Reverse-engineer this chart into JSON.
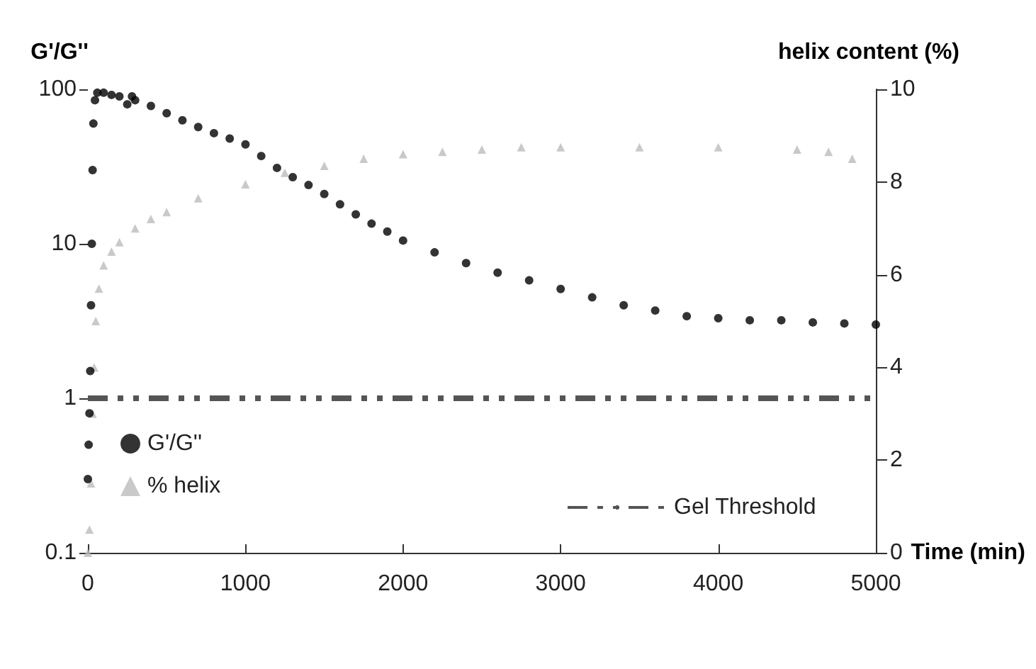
{
  "chart_data": {
    "type": "scatter",
    "xlabel": "Time (min)",
    "ylabel": "G'/G''",
    "y2label": "helix content (%)",
    "xlim": [
      0,
      5000
    ],
    "xticks": [
      0,
      1000,
      2000,
      3000,
      4000,
      5000
    ],
    "ylim": [
      0.1,
      100
    ],
    "yticks": [
      0.1,
      1,
      10,
      100
    ],
    "log": "y",
    "y2lim": [
      0,
      10
    ],
    "y2ticks": [
      0,
      2,
      4,
      6,
      8,
      10
    ],
    "grid": false,
    "legend": "bottom",
    "series": [
      {
        "name": "G'/G''",
        "color": "#000000",
        "marker": "circle",
        "x": [
          0,
          5,
          10,
          15,
          20,
          25,
          30,
          35,
          45,
          60,
          100,
          150,
          200,
          250,
          280,
          300,
          400,
          500,
          600,
          700,
          800,
          900,
          1000,
          1100,
          1200,
          1300,
          1400,
          1500,
          1600,
          1700,
          1800,
          1900,
          2000,
          2200,
          2400,
          2600,
          2800,
          3000,
          3200,
          3400,
          3600,
          3800,
          4000,
          4200,
          4400,
          4600,
          4800,
          5000
        ],
        "values": [
          0.3,
          0.5,
          0.8,
          1.5,
          4,
          10,
          30,
          60,
          85,
          95,
          95,
          92,
          90,
          80,
          90,
          85,
          78,
          70,
          63,
          57,
          52,
          48,
          44,
          37,
          31,
          27,
          24,
          21,
          18,
          15.5,
          13.5,
          12,
          10.5,
          8.8,
          7.5,
          6.5,
          5.8,
          5.1,
          4.5,
          4,
          3.7,
          3.4,
          3.3,
          3.2,
          3.2,
          3.1,
          3.05,
          3
        ]
      },
      {
        "name": "% helix",
        "color": "#bbbbbb",
        "marker": "triangle",
        "axis": "y2",
        "x": [
          0,
          10,
          20,
          30,
          40,
          50,
          70,
          100,
          150,
          200,
          300,
          400,
          500,
          700,
          1000,
          1250,
          1500,
          1750,
          2000,
          2250,
          2500,
          2750,
          3000,
          3500,
          4000,
          4500,
          4700,
          4850
        ],
        "values": [
          0,
          0.5,
          1.5,
          3,
          4,
          5,
          5.7,
          6.2,
          6.5,
          6.7,
          7,
          7.2,
          7.35,
          7.65,
          7.95,
          8.2,
          8.35,
          8.5,
          8.6,
          8.65,
          8.7,
          8.75,
          8.75,
          8.75,
          8.75,
          8.7,
          8.65,
          8.5
        ]
      }
    ],
    "ref_lines": [
      {
        "axis": "y",
        "value": 1,
        "label": "Gel Threshold",
        "color": "#555555",
        "line_style": "dashed"
      }
    ]
  }
}
